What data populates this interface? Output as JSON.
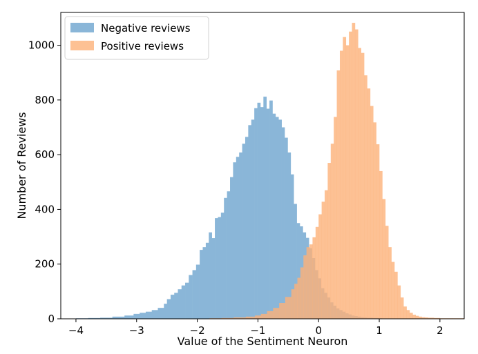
{
  "chart_data": {
    "type": "histogram",
    "xlabel": "Value of the Sentiment Neuron",
    "ylabel": "Number of Reviews",
    "xlim": [
      -4.25,
      2.4
    ],
    "ylim": [
      0,
      1120
    ],
    "xticks": [
      -4,
      -3,
      -2,
      -1,
      0,
      1,
      2
    ],
    "yticks": [
      0,
      200,
      400,
      600,
      800,
      1000
    ],
    "xtick_labels": [
      "−4",
      "−3",
      "−2",
      "−1",
      "0",
      "1",
      "2"
    ],
    "ytick_labels": [
      "0",
      "200",
      "400",
      "600",
      "800",
      "1000"
    ],
    "grid": false,
    "legend_position": "top-left",
    "series": [
      {
        "name": "Negative reviews",
        "color": "#8ab6d8",
        "bins": [
          [
            -4.0,
            2
          ],
          [
            -3.8,
            3
          ],
          [
            -3.6,
            4
          ],
          [
            -3.4,
            8
          ],
          [
            -3.2,
            12
          ],
          [
            -3.05,
            18
          ],
          [
            -2.95,
            22
          ],
          [
            -2.85,
            26
          ],
          [
            -2.75,
            32
          ],
          [
            -2.65,
            40
          ],
          [
            -2.55,
            55
          ],
          [
            -2.5,
            72
          ],
          [
            -2.44,
            88
          ],
          [
            -2.38,
            95
          ],
          [
            -2.32,
            108
          ],
          [
            -2.26,
            122
          ],
          [
            -2.2,
            132
          ],
          [
            -2.14,
            160
          ],
          [
            -2.08,
            178
          ],
          [
            -2.02,
            198
          ],
          [
            -1.96,
            252
          ],
          [
            -1.91,
            262
          ],
          [
            -1.86,
            278
          ],
          [
            -1.81,
            316
          ],
          [
            -1.76,
            295
          ],
          [
            -1.71,
            368
          ],
          [
            -1.66,
            372
          ],
          [
            -1.61,
            388
          ],
          [
            -1.56,
            442
          ],
          [
            -1.51,
            466
          ],
          [
            -1.46,
            518
          ],
          [
            -1.41,
            572
          ],
          [
            -1.36,
            592
          ],
          [
            -1.31,
            608
          ],
          [
            -1.26,
            640
          ],
          [
            -1.21,
            665
          ],
          [
            -1.16,
            708
          ],
          [
            -1.11,
            728
          ],
          [
            -1.06,
            770
          ],
          [
            -1.01,
            790
          ],
          [
            -0.96,
            774
          ],
          [
            -0.91,
            812
          ],
          [
            -0.86,
            768
          ],
          [
            -0.81,
            798
          ],
          [
            -0.76,
            750
          ],
          [
            -0.71,
            738
          ],
          [
            -0.66,
            728
          ],
          [
            -0.61,
            700
          ],
          [
            -0.56,
            662
          ],
          [
            -0.51,
            608
          ],
          [
            -0.46,
            528
          ],
          [
            -0.41,
            420
          ],
          [
            -0.36,
            350
          ],
          [
            -0.31,
            338
          ],
          [
            -0.26,
            316
          ],
          [
            -0.21,
            296
          ],
          [
            -0.16,
            258
          ],
          [
            -0.11,
            222
          ],
          [
            -0.06,
            178
          ],
          [
            -0.01,
            148
          ],
          [
            0.04,
            112
          ],
          [
            0.09,
            95
          ],
          [
            0.14,
            78
          ],
          [
            0.19,
            60
          ],
          [
            0.24,
            48
          ],
          [
            0.29,
            38
          ],
          [
            0.34,
            32
          ],
          [
            0.39,
            26
          ],
          [
            0.44,
            20
          ],
          [
            0.49,
            16
          ],
          [
            0.54,
            12
          ],
          [
            0.59,
            10
          ],
          [
            0.64,
            8
          ],
          [
            0.69,
            6
          ],
          [
            0.74,
            5
          ],
          [
            0.79,
            4
          ],
          [
            0.84,
            4
          ],
          [
            0.89,
            3
          ],
          [
            0.94,
            3
          ],
          [
            0.99,
            2
          ]
        ]
      },
      {
        "name": "Positive reviews",
        "color": "#fdb279",
        "bins": [
          [
            -1.8,
            2
          ],
          [
            -1.6,
            3
          ],
          [
            -1.4,
            5
          ],
          [
            -1.2,
            8
          ],
          [
            -1.05,
            12
          ],
          [
            -0.95,
            18
          ],
          [
            -0.85,
            28
          ],
          [
            -0.75,
            40
          ],
          [
            -0.65,
            58
          ],
          [
            -0.55,
            80
          ],
          [
            -0.45,
            108
          ],
          [
            -0.4,
            128
          ],
          [
            -0.35,
            150
          ],
          [
            -0.3,
            188
          ],
          [
            -0.25,
            232
          ],
          [
            -0.2,
            262
          ],
          [
            -0.15,
            272
          ],
          [
            -0.1,
            298
          ],
          [
            -0.05,
            336
          ],
          [
            0.0,
            382
          ],
          [
            0.05,
            428
          ],
          [
            0.1,
            470
          ],
          [
            0.15,
            570
          ],
          [
            0.2,
            640
          ],
          [
            0.25,
            738
          ],
          [
            0.3,
            908
          ],
          [
            0.35,
            980
          ],
          [
            0.4,
            1030
          ],
          [
            0.45,
            1000
          ],
          [
            0.5,
            1050
          ],
          [
            0.55,
            1082
          ],
          [
            0.6,
            1058
          ],
          [
            0.65,
            990
          ],
          [
            0.7,
            972
          ],
          [
            0.75,
            890
          ],
          [
            0.8,
            842
          ],
          [
            0.85,
            778
          ],
          [
            0.9,
            718
          ],
          [
            0.95,
            638
          ],
          [
            1.0,
            540
          ],
          [
            1.05,
            438
          ],
          [
            1.1,
            340
          ],
          [
            1.15,
            262
          ],
          [
            1.2,
            208
          ],
          [
            1.25,
            172
          ],
          [
            1.3,
            122
          ],
          [
            1.35,
            78
          ],
          [
            1.4,
            45
          ],
          [
            1.45,
            32
          ],
          [
            1.5,
            22
          ],
          [
            1.55,
            15
          ],
          [
            1.6,
            11
          ],
          [
            1.65,
            8
          ],
          [
            1.7,
            6
          ],
          [
            1.75,
            5
          ],
          [
            1.8,
            4
          ],
          [
            1.9,
            3
          ],
          [
            2.0,
            2
          ],
          [
            2.2,
            2
          ]
        ]
      }
    ]
  }
}
